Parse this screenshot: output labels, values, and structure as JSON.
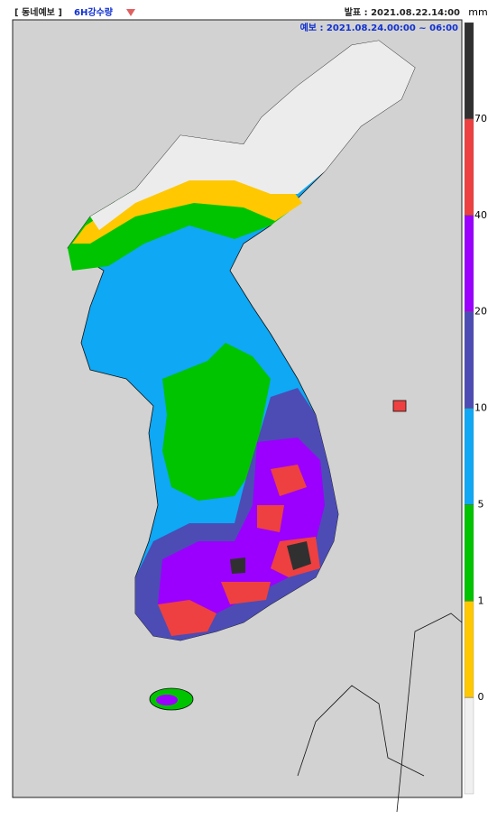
{
  "header": {
    "product": "[ 동네예보 ]",
    "variable": "6H강수량",
    "issued": "발표 : 2021.08.22.14:00",
    "valid": "예보 : 2021.08.24.00:00 ~ 06:00"
  },
  "legend": {
    "unit": "mm",
    "ticks": [
      0,
      1,
      5,
      10,
      20,
      40,
      70
    ],
    "colors": [
      "#f0f0f0",
      "#ffc800",
      "#00c400",
      "#0ea8f5",
      "#4c4cb4",
      "#9b00ff",
      "#ee4040",
      "#303030"
    ]
  }
}
